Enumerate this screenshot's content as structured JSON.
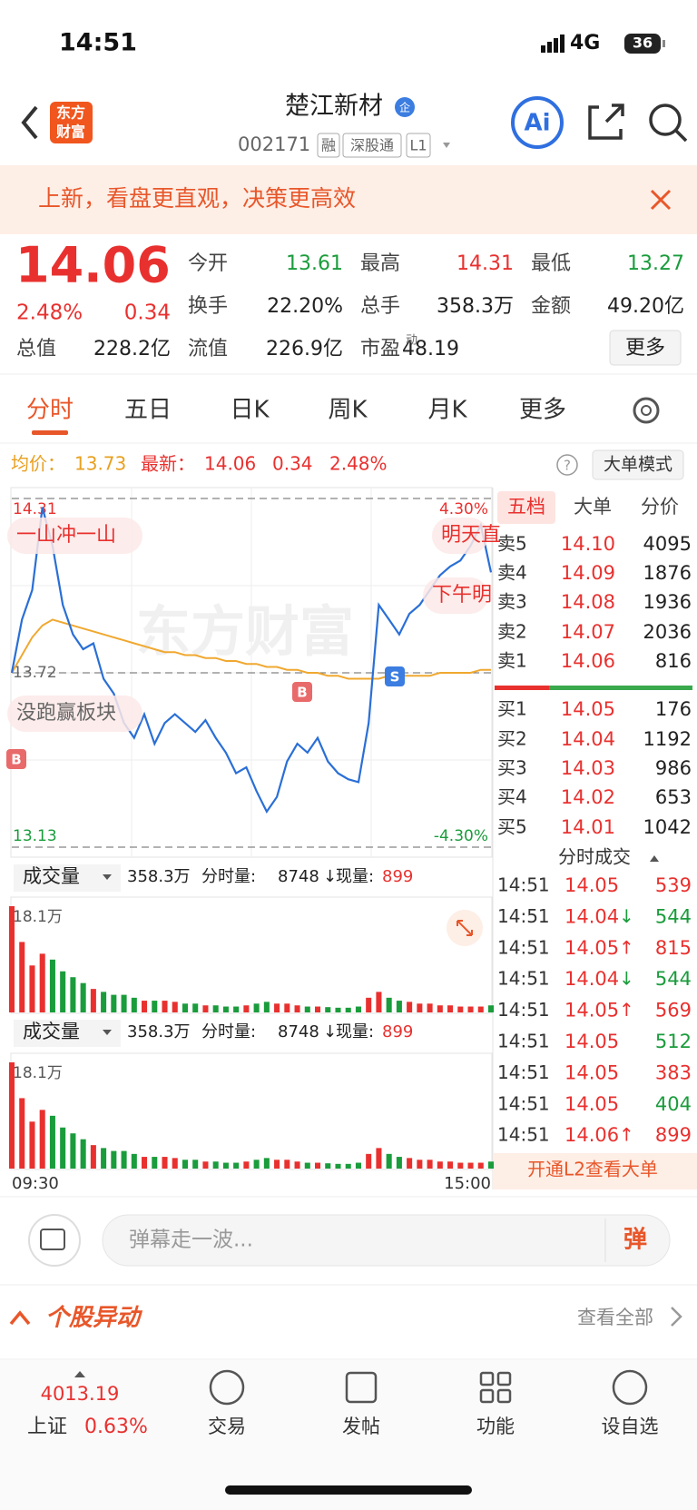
{
  "status_bar": {
    "time": "14:51",
    "network": "4G",
    "battery": "36"
  },
  "header": {
    "logo": [
      "东方",
      "财富"
    ],
    "title": "楚江新材",
    "badge": "企",
    "code": "002171",
    "tags": [
      "融",
      "深股通",
      "L1"
    ],
    "ai": "Ai"
  },
  "banner": {
    "text": "上新，看盘更直观，决策更高效"
  },
  "quote": {
    "price": "14.06",
    "change_pct": "2.48%",
    "change": "0.34",
    "stats": [
      {
        "label": "今开",
        "value": "13.61",
        "color": "#1a9c3c"
      },
      {
        "label": "最高",
        "value": "14.31",
        "color": "#e8312f"
      },
      {
        "label": "最低",
        "value": "13.27",
        "color": "#1a9c3c"
      },
      {
        "label": "换手",
        "value": "22.20%",
        "color": "#222222"
      },
      {
        "label": "总手",
        "value": "358.3万",
        "color": "#222222"
      },
      {
        "label": "金额",
        "value": "49.20亿",
        "color": "#222222"
      },
      {
        "label": "总值",
        "value": "228.2亿",
        "color": "#222222"
      },
      {
        "label": "流值",
        "value": "226.9亿",
        "color": "#222222"
      },
      {
        "label": "市盈",
        "value": "48.19",
        "color": "#222222"
      }
    ],
    "pe_mark": "动",
    "more": "更多"
  },
  "tabs": [
    "分时",
    "五日",
    "日K",
    "周K",
    "月K",
    "更多"
  ],
  "info_row": {
    "avg": "13.73",
    "last": "14.06",
    "change": "0.34",
    "change_pct": "2.48%",
    "help": "?",
    "mode_button": "大单模式"
  },
  "chart_data": [
    {
      "type": "line",
      "categories": [
        "09:30",
        null,
        null,
        null,
        null,
        null,
        null,
        null,
        null,
        null,
        null,
        null,
        null,
        null,
        null,
        null,
        null,
        null,
        null,
        null,
        null,
        null,
        null,
        null,
        null,
        null,
        null,
        null,
        null,
        null,
        null,
        null,
        null,
        null,
        null,
        null,
        null,
        null,
        null,
        null,
        null,
        null,
        null,
        null,
        null,
        null,
        null,
        "15:00"
      ],
      "series": [
        {
          "name": "最新：",
          "color": "#2a6fd6",
          "values": [
            13.72,
            13.9,
            14.0,
            14.28,
            14.15,
            13.95,
            13.85,
            13.8,
            13.82,
            13.7,
            13.65,
            13.55,
            13.5,
            13.58,
            13.48,
            13.55,
            13.58,
            13.55,
            13.52,
            13.56,
            13.5,
            13.45,
            13.38,
            13.4,
            13.32,
            13.25,
            13.3,
            13.42,
            13.48,
            13.45,
            13.5,
            13.42,
            13.38,
            13.36,
            13.35,
            13.55,
            13.95,
            13.9,
            13.85,
            13.92,
            13.95,
            14.0,
            14.05,
            14.08,
            14.1,
            14.15,
            14.22,
            14.06
          ]
        },
        {
          "name": "均价：",
          "color": "#f0a830",
          "values": [
            13.72,
            13.78,
            13.84,
            13.88,
            13.9,
            13.89,
            13.88,
            13.87,
            13.86,
            13.85,
            13.84,
            13.83,
            13.82,
            13.81,
            13.8,
            13.79,
            13.79,
            13.78,
            13.78,
            13.77,
            13.77,
            13.76,
            13.76,
            13.75,
            13.75,
            13.74,
            13.74,
            13.73,
            13.73,
            13.72,
            13.72,
            13.71,
            13.71,
            13.7,
            13.7,
            13.7,
            13.7,
            13.71,
            13.71,
            13.71,
            13.71,
            13.71,
            13.72,
            13.72,
            13.72,
            13.72,
            13.73,
            13.73
          ]
        }
      ],
      "ylim": [
        13.13,
        14.31
      ],
      "yticks": [
        13.13,
        13.72,
        14.31
      ],
      "y2lim": [
        -4.3,
        4.3
      ],
      "y2ticks": [
        {
          "value": -4.3,
          "label": "-4.30%"
        },
        {
          "value": 4.3,
          "label": "4.30%"
        }
      ],
      "grid": true
    },
    {
      "type": "bar",
      "series": [
        {
          "name": "成交量",
          "color": "#e8312f",
          "down_color": "#1a9c3c",
          "values": [
            18.1,
            12,
            8,
            10,
            9,
            7,
            6,
            5,
            4,
            3.5,
            3,
            3,
            2.5,
            2,
            2,
            2,
            1.8,
            1.5,
            1.5,
            1.2,
            1.2,
            1,
            1,
            1.2,
            1.5,
            1.8,
            1.5,
            1.5,
            1.2,
            1,
            1,
            0.9,
            0.8,
            0.8,
            1,
            2.5,
            3.5,
            2.5,
            2,
            1.8,
            1.5,
            1.5,
            1.2,
            1.2,
            1,
            1,
            1,
            1.2
          ]
        }
      ],
      "ylim": [
        0,
        18.1
      ],
      "yticks": [
        {
          "value": 18.1,
          "label": "18.1万"
        }
      ]
    }
  ],
  "volume_header": {
    "total": "358.3万",
    "minute_label": "分时量:",
    "minute": "8748",
    "minute_arrow": "↓",
    "now_label": "现量:",
    "now": "899"
  },
  "chart_annotations": [
    "一山冲一山",
    "没跑赢板块",
    "明天直",
    "下午明",
    "B",
    "B",
    "S"
  ],
  "watermark": "东方财富",
  "order_book": {
    "tabs": [
      "五档",
      "大单",
      "分价"
    ],
    "asks": [
      [
        "卖5",
        "14.10",
        "4095"
      ],
      [
        "卖4",
        "14.09",
        "1876"
      ],
      [
        "卖3",
        "14.08",
        "1936"
      ],
      [
        "卖2",
        "14.07",
        "2036"
      ],
      [
        "卖1",
        "14.06",
        "816"
      ]
    ],
    "bids": [
      [
        "买1",
        "14.05",
        "176"
      ],
      [
        "买2",
        "14.04",
        "1192"
      ],
      [
        "买3",
        "14.03",
        "986"
      ],
      [
        "买4",
        "14.02",
        "653"
      ],
      [
        "买5",
        "14.01",
        "1042"
      ]
    ]
  },
  "trades": {
    "title": "分时成交",
    "rows": [
      {
        "time": "14:51",
        "price": "14.05",
        "arrow": "",
        "volume": "539",
        "color": "#e8312f"
      },
      {
        "time": "14:51",
        "price": "14.04",
        "arrow": "↓",
        "volume": "544",
        "color": "#1a9c3c"
      },
      {
        "time": "14:51",
        "price": "14.05",
        "arrow": "↑",
        "volume": "815",
        "color": "#e8312f"
      },
      {
        "time": "14:51",
        "price": "14.04",
        "arrow": "↓",
        "volume": "544",
        "color": "#1a9c3c"
      },
      {
        "time": "14:51",
        "price": "14.05",
        "arrow": "↑",
        "volume": "569",
        "color": "#e8312f"
      },
      {
        "time": "14:51",
        "price": "14.05",
        "arrow": "",
        "volume": "512",
        "color": "#1a9c3c"
      },
      {
        "time": "14:51",
        "price": "14.05",
        "arrow": "",
        "volume": "383",
        "color": "#e8312f"
      },
      {
        "time": "14:51",
        "price": "14.05",
        "arrow": "",
        "volume": "404",
        "color": "#1a9c3c"
      },
      {
        "time": "14:51",
        "price": "14.06",
        "arrow": "↑",
        "volume": "899",
        "color": "#e8312f"
      }
    ]
  },
  "l2_banner": "开通L2查看大单",
  "comment": {
    "placeholder": "弹幕走一波...",
    "button": "弹"
  },
  "section": {
    "title": "个股异动",
    "link": "查看全部"
  },
  "bottom_nav": {
    "index_value": "4013.19",
    "index_name": "上证",
    "index_change": "0.63%",
    "items": [
      "交易",
      "发帖",
      "功能",
      "设自选"
    ]
  }
}
